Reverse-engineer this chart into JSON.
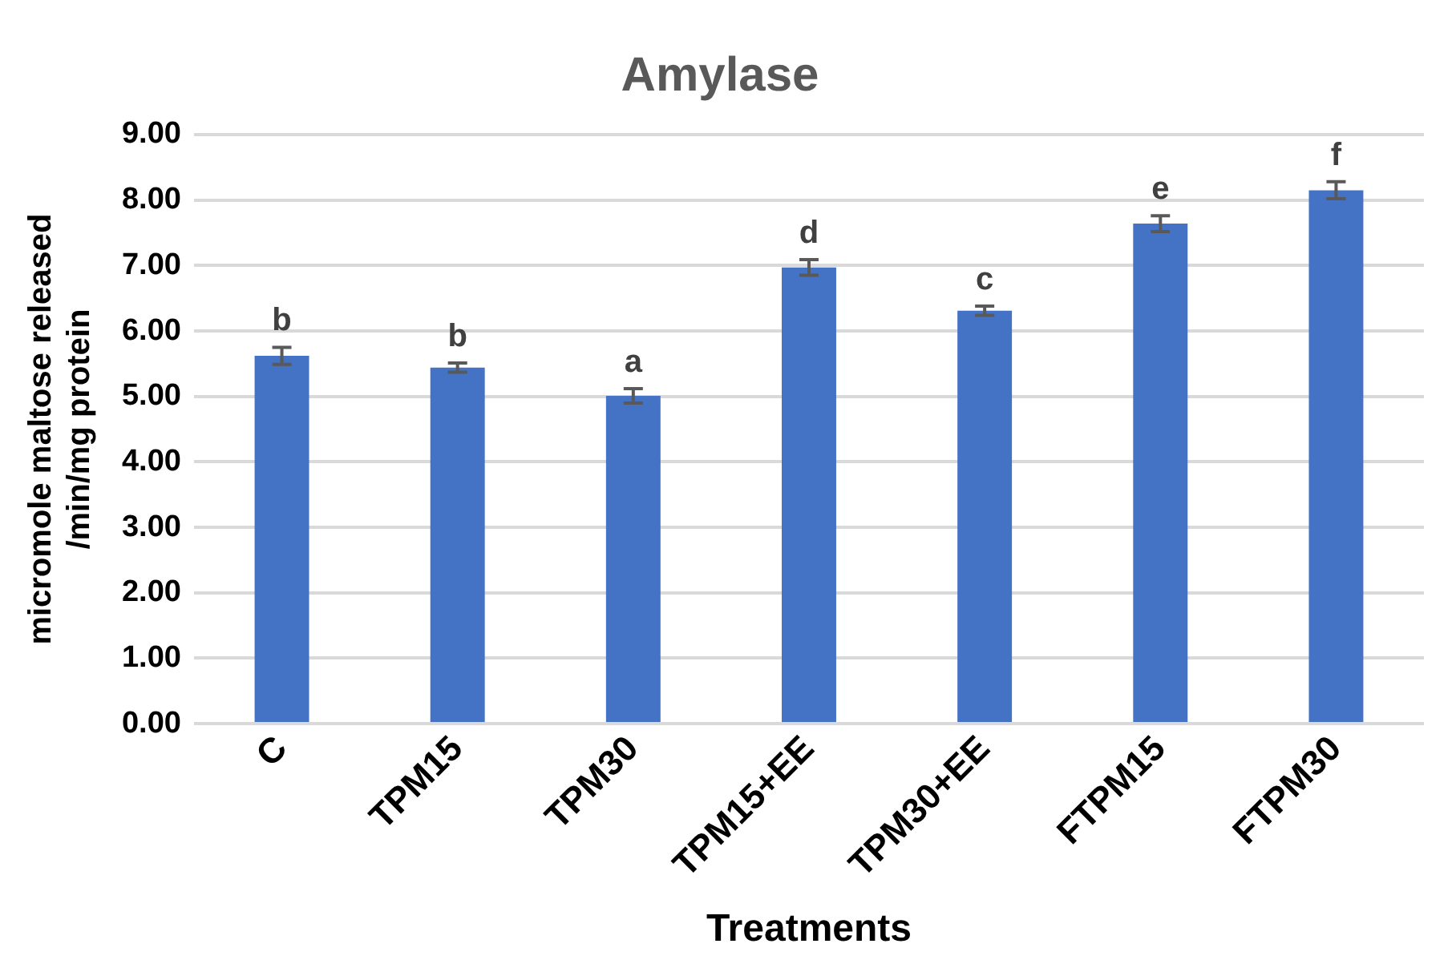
{
  "chart_data": {
    "type": "bar",
    "title": "Amylase",
    "xlabel": "Treatments",
    "ylabel": "micromole maltose released\n/min/mg protein",
    "categories": [
      "C",
      "TPM15",
      "TPM30",
      "TPM15+EE",
      "TPM30+EE",
      "FTPM15",
      "FTPM30"
    ],
    "values": [
      5.62,
      5.44,
      5.01,
      6.97,
      6.31,
      7.64,
      8.15
    ],
    "errors": [
      0.13,
      0.07,
      0.11,
      0.12,
      0.07,
      0.12,
      0.13
    ],
    "color": "#4472c4",
    "ylim": [
      0,
      9
    ],
    "yticks": [
      {
        "value": 0,
        "label": "0.00"
      },
      {
        "value": 1,
        "label": "1.00"
      },
      {
        "value": 2,
        "label": "2.00"
      },
      {
        "value": 3,
        "label": "3.00"
      },
      {
        "value": 4,
        "label": "4.00"
      },
      {
        "value": 5,
        "label": "5.00"
      },
      {
        "value": 6,
        "label": "6.00"
      },
      {
        "value": 7,
        "label": "7.00"
      },
      {
        "value": 8,
        "label": "8.00"
      },
      {
        "value": 9,
        "label": "9.00"
      }
    ],
    "grid": "y",
    "legend": false,
    "annotations": [
      {
        "text": "b",
        "x": "C",
        "y": 5.75
      },
      {
        "text": "b",
        "x": "TPM15",
        "y": 5.51
      },
      {
        "text": "a",
        "x": "TPM30",
        "y": 5.12
      },
      {
        "text": "d",
        "x": "TPM15+EE",
        "y": 7.09
      },
      {
        "text": "c",
        "x": "TPM30+EE",
        "y": 6.38
      },
      {
        "text": "e",
        "x": "FTPM15",
        "y": 7.76
      },
      {
        "text": "f",
        "x": "FTPM30",
        "y": 8.28
      }
    ]
  }
}
